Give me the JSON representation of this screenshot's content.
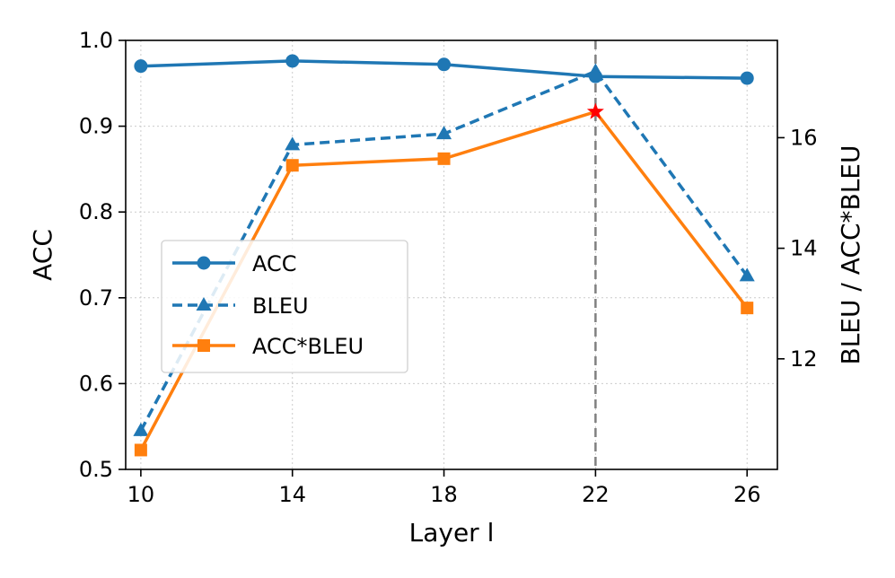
{
  "chart_data": {
    "type": "line",
    "title": "",
    "xlabel": "Layer l",
    "ylabel_left": "ACC",
    "ylabel_right": "BLEU / ACC*BLEU",
    "x": [
      10,
      14,
      18,
      22,
      26
    ],
    "x_tick_labels": [
      "10",
      "14",
      "18",
      "22",
      "26"
    ],
    "xlim": [
      9.6,
      26.8
    ],
    "ylim_left": [
      0.5,
      1.0
    ],
    "ylim_right": [
      10.0,
      17.76
    ],
    "left_ticks": [
      0.5,
      0.6,
      0.7,
      0.8,
      0.9,
      1.0
    ],
    "left_tick_labels": [
      "0.5",
      "0.6",
      "0.7",
      "0.8",
      "0.9",
      "1.0"
    ],
    "right_ticks": [
      12,
      14,
      16
    ],
    "right_tick_labels": [
      "12",
      "14",
      "16"
    ],
    "grid": true,
    "vline_x": 22,
    "highlight": {
      "series": "ACC*BLEU",
      "x": 22,
      "marker": "star",
      "color": "#ff0000"
    },
    "legend_position": "center-left",
    "series": [
      {
        "name": "ACC",
        "axis": "left",
        "color": "#1f77b4",
        "linestyle": "solid",
        "marker": "circle",
        "values": [
          0.97,
          0.976,
          0.972,
          0.958,
          0.956
        ]
      },
      {
        "name": "BLEU",
        "axis": "right",
        "color": "#1f77b4",
        "linestyle": "dashed",
        "marker": "triangle",
        "values": [
          10.7,
          15.87,
          16.07,
          17.2,
          13.5
        ]
      },
      {
        "name": "ACC*BLEU",
        "axis": "right",
        "color": "#ff7f0e",
        "linestyle": "solid",
        "marker": "square",
        "values": [
          10.35,
          15.5,
          15.62,
          16.47,
          12.92
        ]
      }
    ]
  }
}
